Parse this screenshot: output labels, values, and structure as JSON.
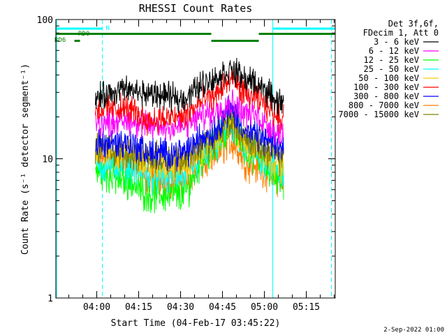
{
  "chart_data": {
    "type": "line",
    "title": "RHESSI Count Rates",
    "xlabel": "Start Time (04-Feb-17 03:45:22)",
    "ylabel": "Count Rate (s⁻¹ detector segment⁻¹)",
    "y_scale": "log",
    "ylim": [
      1,
      100
    ],
    "xlim": [
      "03:45:22",
      "05:25:22"
    ],
    "x_ticks": [
      "04:00",
      "04:15",
      "04:30",
      "04:45",
      "05:00",
      "05:15"
    ],
    "y_ticks": [
      "1",
      "10",
      "100"
    ],
    "legend_header": [
      "Det 3f,6f,",
      "FDecim 1, Att 0"
    ],
    "legend_position": "right",
    "timestamp": "2-Sep-2022 01:00",
    "data_start": "03:59:30",
    "data_end": "05:07:00",
    "x_sample_times": [
      "04:00",
      "04:10",
      "04:20",
      "04:30",
      "04:40",
      "04:48",
      "04:55",
      "05:07"
    ],
    "series": [
      {
        "name": "3 - 6 keV",
        "color": "#000000",
        "values": [
          28,
          31,
          29,
          27,
          36,
          43,
          36,
          25
        ]
      },
      {
        "name": "6 - 12 keV",
        "color": "#ff00ff",
        "values": [
          18,
          19,
          17,
          17,
          21,
          25,
          21,
          15
        ]
      },
      {
        "name": "12 - 25 keV",
        "color": "#00ff00",
        "values": [
          8,
          7,
          5.5,
          5.5,
          11,
          17,
          11,
          7
        ]
      },
      {
        "name": "25 - 50 keV",
        "color": "#00ffff",
        "values": [
          9,
          9,
          7.5,
          7.5,
          11,
          17,
          11,
          8
        ]
      },
      {
        "name": "50 - 100 keV",
        "color": "#ffcc00",
        "values": [
          11,
          11,
          9,
          9,
          12,
          18,
          12,
          9
        ]
      },
      {
        "name": "100 - 300 keV",
        "color": "#ff0000",
        "values": [
          23,
          23,
          19,
          20,
          27,
          36,
          28,
          20
        ]
      },
      {
        "name": "300 - 800 keV",
        "color": "#0000ff",
        "values": [
          13,
          13,
          11,
          11,
          15,
          22,
          15,
          12
        ]
      },
      {
        "name": "800 - 7000 keV",
        "color": "#ff8000",
        "values": [
          9.5,
          9.5,
          7,
          7,
          9.5,
          13,
          9,
          7
        ]
      },
      {
        "name": "7000 - 15000 keV",
        "color": "#808000",
        "values": [
          12,
          11,
          10,
          10,
          13,
          18,
          13,
          10
        ]
      }
    ],
    "flags": {
      "night": {
        "label": "N",
        "color": "#00ffff",
        "intervals": [
          [
            "03:45:22",
            "04:02:00"
          ],
          [
            "05:03:00",
            "05:25:22"
          ]
        ]
      },
      "night_boundaries": [
        "04:02:00",
        "05:03:00",
        "05:24:00"
      ],
      "rd0": {
        "label": "RD0",
        "color": "#008000",
        "intervals": [
          [
            "03:45:22",
            "04:41:00"
          ],
          [
            "04:58:00",
            "05:25:22"
          ]
        ]
      },
      "rd0_gap_segment": [
        "04:41:00",
        "04:58:00"
      ],
      "rd6": {
        "label": "RD6",
        "color": "#008000",
        "intervals": [
          [
            "03:52:00",
            "03:54:00"
          ]
        ]
      }
    }
  }
}
